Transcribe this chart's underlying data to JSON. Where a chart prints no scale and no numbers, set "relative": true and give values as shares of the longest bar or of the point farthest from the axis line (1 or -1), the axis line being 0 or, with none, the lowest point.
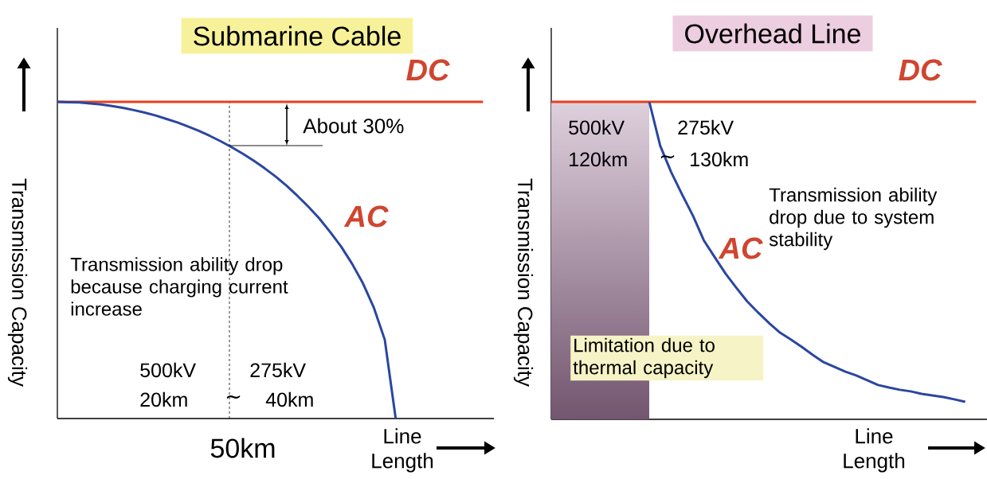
{
  "chart_data": [
    {
      "type": "line",
      "title": "Submarine Cable",
      "xlabel": "Line Length",
      "ylabel": "Transmission Capacity",
      "relative": true,
      "categories": [
        null,
        null,
        null,
        null,
        null,
        null,
        null,
        null,
        null,
        null,
        null,
        null,
        null,
        null,
        null,
        null,
        null,
        null,
        null,
        null,
        null,
        null,
        null,
        null,
        null,
        null,
        null,
        null,
        null,
        null,
        null,
        null,
        null,
        null,
        null,
        null,
        null,
        null,
        null,
        null,
        null
      ],
      "series": [
        {
          "name": "DC",
          "color": "#e8401c",
          "values": [
            1,
            1,
            1,
            1,
            1,
            1,
            1,
            1,
            1,
            1,
            1,
            1,
            1,
            1,
            1,
            1,
            1,
            1,
            1,
            1,
            1,
            1,
            1,
            1,
            1,
            1,
            1,
            1,
            1,
            1,
            1,
            1,
            1,
            1,
            1,
            1,
            1,
            1,
            1,
            1,
            null
          ]
        },
        {
          "name": "AC",
          "color": "#2a46a0",
          "values": [
            1,
            0.999,
            0.998,
            0.995,
            0.992,
            0.987,
            0.981,
            0.974,
            0.966,
            0.957,
            0.946,
            0.935,
            0.922,
            0.908,
            0.892,
            0.875,
            0.856,
            0.836,
            0.814,
            0.79,
            0.764,
            0.735,
            0.703,
            0.669,
            0.632,
            0.589,
            0.543,
            0.489,
            0.427,
            0.35,
            0.249,
            0,
            null,
            null,
            null,
            null,
            null,
            null,
            null,
            null,
            null
          ]
        }
      ],
      "annotations": [
        "About 30%",
        "Transmission ability drop because charging current increase",
        "500kV",
        "275kV",
        "20km",
        "∼",
        "40km",
        "50km"
      ]
    },
    {
      "type": "line",
      "title": "Overhead Line",
      "xlabel": "Line Length",
      "ylabel": "Transmission Capacity",
      "relative": true,
      "categories": [
        null,
        null,
        null,
        null,
        null,
        null,
        null,
        null,
        null,
        null,
        null,
        null,
        null,
        null,
        null,
        null,
        null,
        null,
        null,
        null,
        null,
        null,
        null,
        null,
        null,
        null,
        null,
        null,
        null,
        null,
        null,
        null,
        null,
        null,
        null,
        null,
        null,
        null,
        null,
        null,
        null
      ],
      "series": [
        {
          "name": "DC",
          "color": "#e8401c",
          "values": [
            1,
            1,
            1,
            1,
            1,
            1,
            1,
            1,
            1,
            1,
            1,
            1,
            1,
            1,
            1,
            1,
            1,
            1,
            1,
            1,
            1,
            1,
            1,
            1,
            1,
            1,
            1,
            1,
            1,
            1,
            1,
            1,
            1,
            1,
            1,
            1,
            1,
            1,
            1,
            1,
            null
          ]
        },
        {
          "name": "AC",
          "color": "#2a46a0",
          "values": [
            null,
            null,
            null,
            null,
            null,
            null,
            null,
            null,
            null,
            1,
            0.862,
            0.779,
            0.709,
            0.642,
            0.564,
            0.511,
            0.459,
            0.414,
            0.371,
            0.336,
            0.303,
            0.273,
            0.251,
            0.228,
            0.203,
            0.18,
            0.165,
            0.15,
            0.138,
            0.123,
            0.108,
            0.1,
            0.093,
            0.088,
            0.08,
            0.075,
            0.07,
            0.063,
            0.055,
            null,
            null
          ]
        }
      ],
      "annotations": [
        "Transmission ability drop due to system stability",
        "500kV",
        "275kV",
        "120km",
        "∼",
        "130km",
        "Limitation due to thermal capacity"
      ]
    }
  ]
}
